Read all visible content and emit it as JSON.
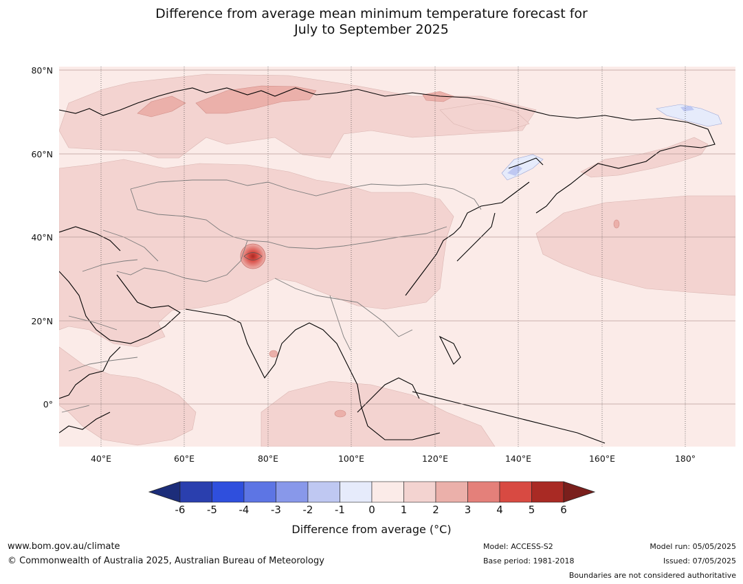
{
  "title": {
    "line1": "Difference from average mean minimum temperature forecast for",
    "line2": "July to September 2025"
  },
  "map": {
    "region": "Asia",
    "y_ticks": [
      "80°N",
      "60°N",
      "40°N",
      "20°N",
      "0°"
    ],
    "x_ticks": [
      "40°E",
      "60°E",
      "80°E",
      "100°E",
      "120°E",
      "140°E",
      "160°E",
      "180°"
    ],
    "background_color": "#fbebe8",
    "anomaly_colors": {
      "0_to_1": "#fbebe8",
      "1_to_2": "#f3d3d0",
      "2_to_3": "#ebb0aa",
      "3_to_4": "#e4807a",
      "neg1_to_0": "#e6ebfb",
      "neg2_to_neg1": "#bfc8f2"
    }
  },
  "colorbar": {
    "tick_labels": [
      "-6",
      "-5",
      "-4",
      "-3",
      "-2",
      "-1",
      "0",
      "1",
      "2",
      "3",
      "4",
      "5",
      "6"
    ],
    "colors": [
      "#1c2d7a",
      "#2a3fae",
      "#2f4fdd",
      "#5d75e4",
      "#8898ea",
      "#bfc8f2",
      "#e6ebfb",
      "#fbebe8",
      "#f3d3d0",
      "#ebb0aa",
      "#e4807a",
      "#d84a42",
      "#a92a24",
      "#7a1f1c"
    ],
    "label": "Difference from average (°C)"
  },
  "footer": {
    "url": "www.bom.gov.au/climate",
    "copyright": "© Commonwealth of Australia 2025, Australian Bureau of Meteorology",
    "model": "Model: ACCESS-S2",
    "base_period": "Base period: 1981-2018",
    "model_run": "Model run: 05/05/2025",
    "issued": "Issued: 07/05/2025",
    "boundaries_note": "Boundaries are not considered authoritative"
  }
}
